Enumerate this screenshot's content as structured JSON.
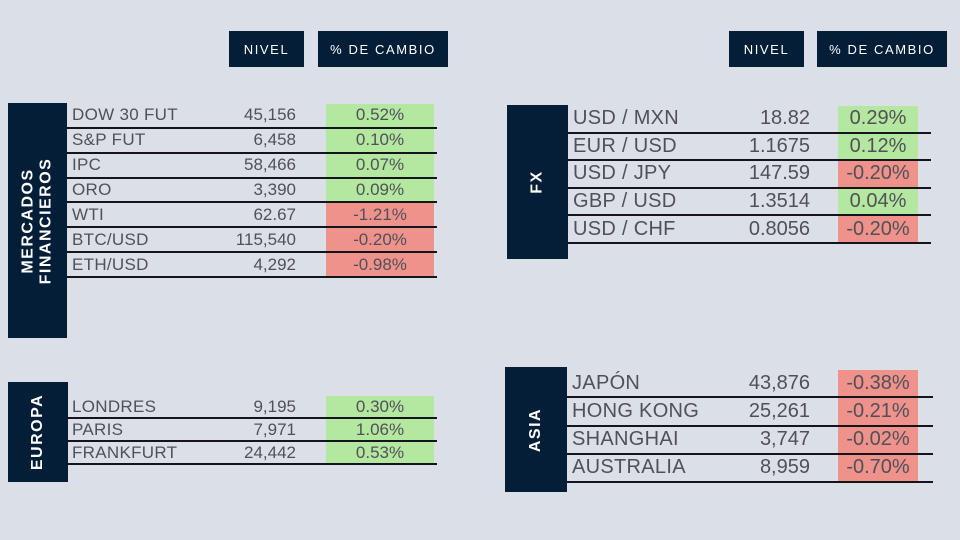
{
  "theme": {
    "background": "#dbdfe7",
    "navy": "#041e38",
    "positive_bg": "#b4e7a0",
    "negative_bg": "#ee928b",
    "text_color": "#505158",
    "line_color": "#14151a",
    "header_text_color": "#ffffff"
  },
  "column_headers": {
    "nivel": "NIVEL",
    "cambio": "% DE CAMBIO"
  },
  "tables": {
    "mercados": {
      "title_lines": [
        "MERCADOS",
        "FINANCIEROS"
      ],
      "rows": [
        {
          "label": "DOW 30 FUT",
          "value": "45,156",
          "change": "0.52%",
          "direction": "up"
        },
        {
          "label": "S&P FUT",
          "value": "6,458",
          "change": "0.10%",
          "direction": "up"
        },
        {
          "label": "IPC",
          "value": "58,466",
          "change": "0.07%",
          "direction": "up"
        },
        {
          "label": "ORO",
          "value": "3,390",
          "change": "0.09%",
          "direction": "up"
        },
        {
          "label": "WTI",
          "value": "62.67",
          "change": "-1.21%",
          "direction": "down"
        },
        {
          "label": "BTC/USD",
          "value": "115,540",
          "change": "-0.20%",
          "direction": "down"
        },
        {
          "label": "ETH/USD",
          "value": "4,292",
          "change": "-0.98%",
          "direction": "down"
        }
      ]
    },
    "fx": {
      "title_lines": [
        "FX"
      ],
      "rows": [
        {
          "label": "USD / MXN",
          "value": "18.82",
          "change": "0.29%",
          "direction": "up"
        },
        {
          "label": "EUR / USD",
          "value": "1.1675",
          "change": "0.12%",
          "direction": "up"
        },
        {
          "label": "USD / JPY",
          "value": "147.59",
          "change": "-0.20%",
          "direction": "down"
        },
        {
          "label": "GBP / USD",
          "value": "1.3514",
          "change": "0.04%",
          "direction": "up"
        },
        {
          "label": "USD / CHF",
          "value": "0.8056",
          "change": "-0.20%",
          "direction": "down"
        }
      ]
    },
    "europa": {
      "title_lines": [
        "EUROPA"
      ],
      "rows": [
        {
          "label": "LONDRES",
          "value": "9,195",
          "change": "0.30%",
          "direction": "up"
        },
        {
          "label": "PARIS",
          "value": "7,971",
          "change": "1.06%",
          "direction": "up"
        },
        {
          "label": "FRANKFURT",
          "value": "24,442",
          "change": "0.53%",
          "direction": "up"
        }
      ]
    },
    "asia": {
      "title_lines": [
        "ASIA"
      ],
      "rows": [
        {
          "label": "JAPÓN",
          "value": "43,876",
          "change": "-0.38%",
          "direction": "down"
        },
        {
          "label": "HONG KONG",
          "value": "25,261",
          "change": "-0.21%",
          "direction": "down"
        },
        {
          "label": "SHANGHAI",
          "value": "3,747",
          "change": "-0.02%",
          "direction": "down"
        },
        {
          "label": "AUSTRALIA",
          "value": "8,959",
          "change": "-0.70%",
          "direction": "down"
        }
      ]
    }
  }
}
